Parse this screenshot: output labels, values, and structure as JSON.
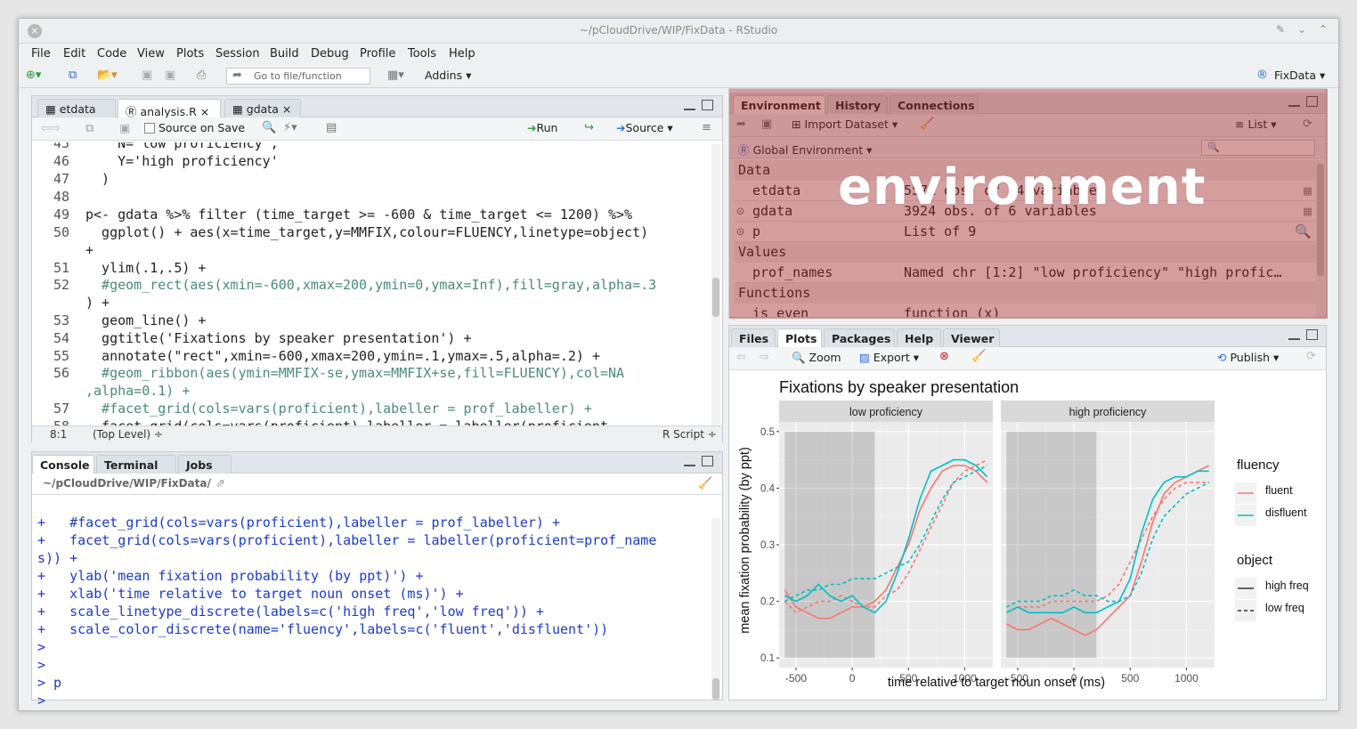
{
  "window": {
    "title": "~/pCloudDrive/WIP/FixData - RStudio"
  },
  "menu": [
    "File",
    "Edit",
    "Code",
    "View",
    "Plots",
    "Session",
    "Build",
    "Debug",
    "Profile",
    "Tools",
    "Help"
  ],
  "main_toolbar": {
    "goto_placeholder": "Go to file/function",
    "addins": "Addins",
    "project": "FixData"
  },
  "editor": {
    "tabs": [
      "etdata",
      "analysis.R",
      "gdata"
    ],
    "source_on_save": "Source on Save",
    "run": "Run",
    "source": "Source",
    "lines": [
      {
        "n": "45",
        "t": "    N='low proficiency',"
      },
      {
        "n": "46",
        "t": "    Y='high proficiency'"
      },
      {
        "n": "47",
        "t": "  )"
      },
      {
        "n": "48",
        "t": ""
      },
      {
        "n": "49",
        "t": "p<- gdata %>% filter (time_target >= -600 & time_target <= 1200) %>%"
      },
      {
        "n": "50",
        "t": "  ggplot() + aes(x=time_target,y=MMFIX,colour=FLUENCY,linetype=object)"
      },
      {
        "n": "",
        "t": "+"
      },
      {
        "n": "51",
        "t": "  ylim(.1,.5) +"
      },
      {
        "n": "52",
        "t": "  #geom_rect(aes(xmin=-600,xmax=200,ymin=0,ymax=Inf),fill=gray,alpha=.3"
      },
      {
        "n": "",
        "t": ") +"
      },
      {
        "n": "53",
        "t": "  geom_line() +"
      },
      {
        "n": "54",
        "t": "  ggtitle('Fixations by speaker presentation') +"
      },
      {
        "n": "55",
        "t": "  annotate(\"rect\",xmin=-600,xmax=200,ymin=.1,ymax=.5,alpha=.2) +"
      },
      {
        "n": "56",
        "t": "  #geom_ribbon(aes(ymin=MMFIX-se,ymax=MMFIX+se,fill=FLUENCY),col=NA"
      },
      {
        "n": "",
        "t": ",alpha=0.1) +"
      },
      {
        "n": "57",
        "t": "  #facet_grid(cols=vars(proficient),labeller = prof_labeller) +"
      },
      {
        "n": "58",
        "t": "  facet_grid(cols=vars(proficient),labeller = labeller(proficient"
      }
    ],
    "status_pos": "8:1",
    "status_scope": "(Top Level) ÷",
    "status_type": "R Script ÷"
  },
  "console": {
    "tabs": [
      "Console",
      "Terminal",
      "Jobs"
    ],
    "path": "~/pCloudDrive/WIP/FixData/",
    "lines": [
      "+   #facet_grid(cols=vars(proficient),labeller = prof_labeller) +",
      "+   facet_grid(cols=vars(proficient),labeller = labeller(proficient=prof_name",
      "s)) +",
      "+   ylab('mean fixation probability (by ppt)') +",
      "+   xlab('time relative to target noun onset (ms)') +",
      "+   scale_linetype_discrete(labels=c('high freq','low freq')) +",
      "+   scale_color_discrete(name='fluency',labels=c('fluent','disfluent'))",
      ">",
      ">",
      "> p",
      ">"
    ]
  },
  "environment": {
    "tabs": [
      "Environment",
      "History",
      "Connections"
    ],
    "import": "Import Dataset",
    "list": "List",
    "scope": "Global Environment",
    "overlay_label": "environment",
    "sections": {
      "data": "Data",
      "values": "Values",
      "functions": "Functions"
    },
    "rows": [
      {
        "name": "etdata",
        "value": "5571 obs. of 14 variables"
      },
      {
        "name": "gdata",
        "value": "3924 obs. of 6 variables"
      },
      {
        "name": "p",
        "value": "List of 9"
      },
      {
        "name": "prof_names",
        "value": "Named chr [1:2] \"low proficiency\" \"high profic…"
      },
      {
        "name": "is_even",
        "value": "function (x)"
      }
    ],
    "overlay_color": "#a02828"
  },
  "files_pane": {
    "tabs": [
      "Files",
      "Plots",
      "Packages",
      "Help",
      "Viewer"
    ],
    "zoom": "Zoom",
    "export": "Export",
    "publish": "Publish"
  },
  "chart_data": {
    "type": "line",
    "title": "Fixations by speaker presentation",
    "xlabel": "time relative to target noun onset (ms)",
    "ylabel": "mean fixation probability (by ppt)",
    "ylim": [
      0.1,
      0.5
    ],
    "xlim": [
      -600,
      1200
    ],
    "x_ticks": [
      -500,
      0,
      500,
      1000
    ],
    "y_ticks": [
      "0.1",
      "0.2",
      "0.3",
      "0.4",
      "0.5"
    ],
    "x_tick_labels": [
      "-500",
      "0",
      "500",
      "1000"
    ],
    "shaded_region": {
      "xmin": -600,
      "xmax": 200
    },
    "panels": [
      "low proficiency",
      "high proficiency"
    ],
    "legend": {
      "fluency_title": "fluency",
      "fluency": [
        "fluent",
        "disfluent"
      ],
      "object_title": "object",
      "object": [
        "high freq",
        "low freq"
      ]
    },
    "colors": {
      "fluent": "#f8766d",
      "disfluent": "#00bfc4"
    },
    "x": [
      -600,
      -500,
      -400,
      -300,
      -200,
      -100,
      0,
      100,
      200,
      300,
      400,
      500,
      600,
      700,
      800,
      900,
      1000,
      1100,
      1200
    ],
    "series": [
      {
        "panel": 0,
        "fluency": "fluent",
        "object": "high freq",
        "values": [
          0.22,
          0.19,
          0.18,
          0.17,
          0.17,
          0.18,
          0.19,
          0.19,
          0.2,
          0.22,
          0.26,
          0.3,
          0.36,
          0.4,
          0.43,
          0.44,
          0.44,
          0.43,
          0.41
        ]
      },
      {
        "panel": 0,
        "fluency": "fluent",
        "object": "low freq",
        "values": [
          0.2,
          0.18,
          0.19,
          0.2,
          0.2,
          0.21,
          0.2,
          0.19,
          0.19,
          0.21,
          0.22,
          0.25,
          0.29,
          0.33,
          0.37,
          0.41,
          0.43,
          0.44,
          0.45
        ]
      },
      {
        "panel": 0,
        "fluency": "disfluent",
        "object": "high freq",
        "values": [
          0.21,
          0.2,
          0.21,
          0.23,
          0.21,
          0.2,
          0.21,
          0.19,
          0.18,
          0.2,
          0.25,
          0.31,
          0.38,
          0.43,
          0.44,
          0.45,
          0.45,
          0.44,
          0.42
        ]
      },
      {
        "panel": 0,
        "fluency": "disfluent",
        "object": "low freq",
        "values": [
          0.2,
          0.21,
          0.22,
          0.22,
          0.23,
          0.23,
          0.24,
          0.24,
          0.24,
          0.25,
          0.26,
          0.27,
          0.3,
          0.34,
          0.38,
          0.41,
          0.42,
          0.43,
          0.44
        ]
      },
      {
        "panel": 1,
        "fluency": "fluent",
        "object": "high freq",
        "values": [
          0.16,
          0.15,
          0.15,
          0.16,
          0.17,
          0.16,
          0.15,
          0.14,
          0.15,
          0.17,
          0.19,
          0.21,
          0.27,
          0.34,
          0.39,
          0.41,
          0.42,
          0.43,
          0.44
        ]
      },
      {
        "panel": 1,
        "fluency": "fluent",
        "object": "low freq",
        "values": [
          0.18,
          0.19,
          0.19,
          0.19,
          0.2,
          0.2,
          0.2,
          0.2,
          0.2,
          0.21,
          0.23,
          0.27,
          0.31,
          0.35,
          0.38,
          0.4,
          0.41,
          0.41,
          0.41
        ]
      },
      {
        "panel": 1,
        "fluency": "disfluent",
        "object": "high freq",
        "values": [
          0.18,
          0.19,
          0.18,
          0.18,
          0.18,
          0.18,
          0.19,
          0.18,
          0.18,
          0.19,
          0.2,
          0.24,
          0.32,
          0.38,
          0.41,
          0.42,
          0.42,
          0.43,
          0.43
        ]
      },
      {
        "panel": 1,
        "fluency": "disfluent",
        "object": "low freq",
        "values": [
          0.19,
          0.2,
          0.2,
          0.2,
          0.21,
          0.21,
          0.22,
          0.21,
          0.21,
          0.2,
          0.2,
          0.21,
          0.25,
          0.31,
          0.35,
          0.37,
          0.39,
          0.4,
          0.41
        ]
      }
    ]
  }
}
